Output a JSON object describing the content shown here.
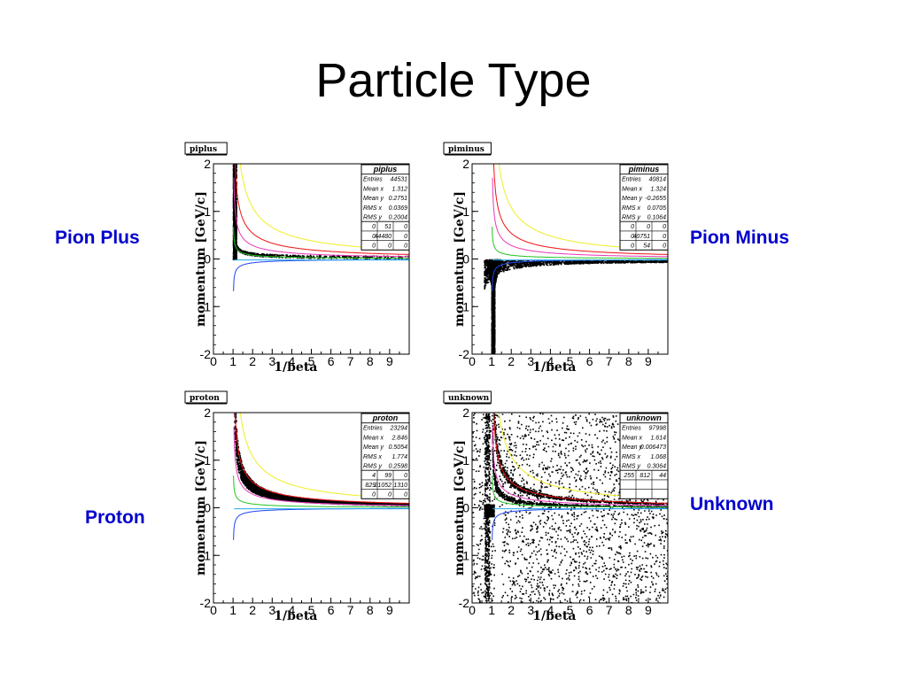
{
  "slide": {
    "title": "Particle Type",
    "labels": {
      "piplus": "Pion Plus",
      "piminus": "Pion Minus",
      "proton": "Proton",
      "unknown": "Unknown"
    },
    "label_color": "#0000cc"
  },
  "chart_data": [
    {
      "type": "scatter",
      "hist_name": "piplus",
      "xlabel": "1/beta",
      "ylabel": "momentum [GeV/c]",
      "xlim": [
        0,
        10
      ],
      "ylim": [
        -2,
        2
      ],
      "xticks": [
        "0",
        "1",
        "2",
        "3",
        "4",
        "5",
        "6",
        "7",
        "8",
        "9"
      ],
      "yticks": [
        "-2",
        "-1",
        "0",
        "1",
        "2"
      ],
      "stats": {
        "title": "piplus",
        "rows": [
          [
            "Entries",
            "44531"
          ],
          [
            "Mean x",
            "1.312"
          ],
          [
            "Mean y",
            "0.2751"
          ],
          [
            "RMS x",
            "0.0369"
          ],
          [
            "RMS y",
            "0.2004"
          ]
        ],
        "grid": [
          [
            "0",
            "51",
            "0"
          ],
          [
            "0",
            "44480",
            "0"
          ],
          [
            "0",
            "0",
            "0"
          ]
        ]
      },
      "distribution": "positive pion band: dense cluster 1/beta 1.0–1.15, p 0–2 GeV/c, thin tail along pion curve out to 1/beta 10"
    },
    {
      "type": "scatter",
      "hist_name": "piminus",
      "xlabel": "1/beta",
      "ylabel": "momentum [GeV/c]",
      "xlim": [
        0,
        10
      ],
      "ylim": [
        -2,
        2
      ],
      "xticks": [
        "0",
        "1",
        "2",
        "3",
        "4",
        "5",
        "6",
        "7",
        "8",
        "9"
      ],
      "yticks": [
        "-2",
        "-1",
        "0",
        "1",
        "2"
      ],
      "stats": {
        "title": "piminus",
        "rows": [
          [
            "Entries",
            "40814"
          ],
          [
            "Mean x",
            "1.324"
          ],
          [
            "Mean y",
            "-0.2655"
          ],
          [
            "RMS x",
            "0.0705"
          ],
          [
            "RMS y",
            "0.1064"
          ]
        ],
        "grid": [
          [
            "0",
            "0",
            "0"
          ],
          [
            "0",
            "40751",
            "0"
          ],
          [
            "0",
            "54",
            "0"
          ]
        ]
      },
      "distribution": "negative pion band: dense cluster 1/beta 0.7–1.3, p -2–0 GeV/c, band just below 0 out to 1/beta 10"
    },
    {
      "type": "scatter",
      "hist_name": "proton",
      "xlabel": "1/beta",
      "ylabel": "momentum [GeV/c]",
      "xlim": [
        0,
        10
      ],
      "ylim": [
        -2,
        2
      ],
      "xticks": [
        "0",
        "1",
        "2",
        "3",
        "4",
        "5",
        "6",
        "7",
        "8",
        "9"
      ],
      "yticks": [
        "-2",
        "-1",
        "0",
        "1",
        "2"
      ],
      "stats": {
        "title": "proton",
        "rows": [
          [
            "Entries",
            "23294"
          ],
          [
            "Mean x",
            "2.846"
          ],
          [
            "Mean y",
            "0.5054"
          ],
          [
            "RMS x",
            "1.774"
          ],
          [
            "RMS y",
            "0.2598"
          ]
        ],
        "grid": [
          [
            "4",
            "99",
            "0"
          ],
          [
            "829",
            "21052",
            "1310"
          ],
          [
            "0",
            "0",
            "0"
          ]
        ]
      },
      "distribution": "proton band along the red proton curve, 1/beta 1–10, p 0.1–2 GeV/c"
    },
    {
      "type": "scatter",
      "hist_name": "unknown",
      "xlabel": "1/beta",
      "ylabel": "momentum [GeV/c]",
      "xlim": [
        0,
        10
      ],
      "ylim": [
        -2,
        2
      ],
      "xticks": [
        "0",
        "1",
        "2",
        "3",
        "4",
        "5",
        "6",
        "7",
        "8",
        "9"
      ],
      "yticks": [
        "-2",
        "-1",
        "0",
        "1",
        "2"
      ],
      "stats": {
        "title": "unknown",
        "rows": [
          [
            "Entries",
            "97998"
          ],
          [
            "Mean x",
            "1.614"
          ],
          [
            "Mean y",
            "0.006473"
          ],
          [
            "RMS x",
            "1.068"
          ],
          [
            "RMS y",
            "0.3064"
          ]
        ],
        "grid": [
          [
            "255",
            "812",
            "44"
          ],
          [
            "",
            "",
            ""
          ],
          [
            "",
            "",
            ""
          ]
        ]
      },
      "distribution": "scattered entries over full plane, dense bands along both proton and pion curves, strip near 1/beta 0.6–0.9"
    }
  ],
  "curves": {
    "pion_momentum_curve": {
      "color": "#22c422",
      "mass_gev": 0.1396
    },
    "kaon_momentum_curve": {
      "color": "#e838b8",
      "mass_gev": 0.4937
    },
    "proton_momentum_curve": {
      "color": "#ee1111",
      "mass_gev": 0.9383
    },
    "deuteron_momentum_curve": {
      "color": "#eeee22",
      "mass_gev": 1.8756
    },
    "negative_pion_curve": {
      "color": "#2244ee",
      "mass_gev": 0.1396
    },
    "near_zero_curve": {
      "color": "#22aaee"
    },
    "scatter_color": "#000000"
  }
}
